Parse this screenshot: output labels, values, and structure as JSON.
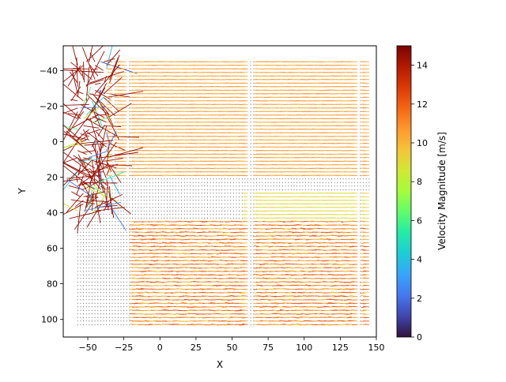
{
  "chart_data": {
    "type": "quiver",
    "title": "",
    "xlabel": "X",
    "ylabel": "Y",
    "xlim": [
      -67,
      150
    ],
    "ylim": [
      110,
      -54
    ],
    "y_inverted": true,
    "x_ticks": [
      -50,
      -25,
      0,
      25,
      50,
      75,
      100,
      125,
      150
    ],
    "x_tick_labels": [
      "−50",
      "−25",
      "0",
      "25",
      "50",
      "75",
      "100",
      "125",
      "150"
    ],
    "y_ticks": [
      -40,
      -20,
      0,
      20,
      40,
      60,
      80,
      100
    ],
    "y_tick_labels": [
      "−40",
      "−20",
      "0",
      "20",
      "40",
      "60",
      "80",
      "100"
    ],
    "grid": false,
    "field": {
      "x_range": [
        -57,
        145
      ],
      "y_range": [
        -45,
        104
      ],
      "grid_spacing": 2,
      "regions": [
        {
          "name": "upper-flow",
          "x": [
            -40,
            145
          ],
          "y": [
            -45,
            20
          ],
          "u_mag": 10.2,
          "direction": "left",
          "color_value": 10.5
        },
        {
          "name": "recirculation-void",
          "x": [
            -35,
            60
          ],
          "y": [
            22,
            40
          ],
          "u_mag": 0.2,
          "direction": "none",
          "color_value": 0.5
        },
        {
          "name": "shear-layer",
          "x": [
            60,
            145
          ],
          "y": [
            28,
            44
          ],
          "u_mag": 9.5,
          "direction": "left",
          "color_value": 9.0
        },
        {
          "name": "lower-flow",
          "x": [
            -20,
            145
          ],
          "y": [
            44,
            104
          ],
          "u_mag": 10.5,
          "direction": "left",
          "color_value": 11.0
        },
        {
          "name": "left-wall-noise",
          "x": [
            -57,
            -35
          ],
          "y": [
            -50,
            40
          ],
          "u_mag": 14.5,
          "direction": "random",
          "color_value": 14.5
        }
      ],
      "empty_columns_x": [
        -30,
        -20,
        65,
        140
      ]
    },
    "colorbar": {
      "label": "Velocity Magnitude [m/s]",
      "colormap": "turbo",
      "range": [
        0,
        15
      ],
      "ticks": [
        0,
        2,
        4,
        6,
        8,
        10,
        12,
        14
      ],
      "tick_labels": [
        "0",
        "2",
        "4",
        "6",
        "8",
        "10",
        "12",
        "14"
      ]
    }
  }
}
